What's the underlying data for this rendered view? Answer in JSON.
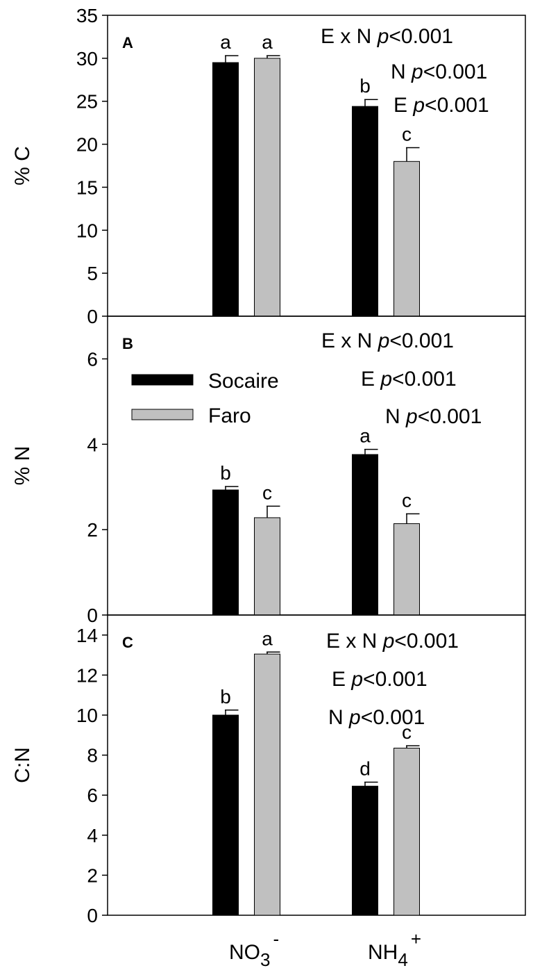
{
  "chart_data": [
    {
      "type": "bar",
      "panel_label": "A",
      "ylabel": "% C",
      "ylim": [
        0,
        35
      ],
      "yticks": [
        "0",
        "5",
        "10",
        "15",
        "20",
        "25",
        "30",
        "35"
      ],
      "ytick_values": [
        0,
        5,
        10,
        15,
        20,
        25,
        30,
        35
      ],
      "categories": [
        "NO3-",
        "NH4+"
      ],
      "series": [
        {
          "name": "Socaire",
          "color": "#000000",
          "values": [
            29.5,
            24.4
          ],
          "errors": [
            0.8,
            0.8
          ],
          "letters": [
            "a",
            "b"
          ]
        },
        {
          "name": "Faro",
          "color": "#c0c0c0",
          "values": [
            30.0,
            18.0
          ],
          "errors": [
            0.3,
            1.6
          ],
          "letters": [
            "a",
            "c"
          ]
        }
      ],
      "stats": [
        "E x N p<0.001",
        "N p<0.001",
        "E p<0.001"
      ]
    },
    {
      "type": "bar",
      "panel_label": "B",
      "ylabel": "% N",
      "ylim": [
        0,
        7
      ],
      "yticks": [
        "0",
        "2",
        "4",
        "6"
      ],
      "ytick_values": [
        0,
        2,
        4,
        6
      ],
      "categories": [
        "NO3-",
        "NH4+"
      ],
      "series": [
        {
          "name": "Socaire",
          "color": "#000000",
          "values": [
            2.93,
            3.76
          ],
          "errors": [
            0.08,
            0.12
          ],
          "letters": [
            "b",
            "a"
          ]
        },
        {
          "name": "Faro",
          "color": "#c0c0c0",
          "values": [
            2.28,
            2.14
          ],
          "errors": [
            0.27,
            0.23
          ],
          "letters": [
            "c",
            "c"
          ]
        }
      ],
      "stats": [
        "E x N p<0.001",
        "E p<0.001",
        "N p<0.001"
      ],
      "legend": [
        {
          "label": "Socaire",
          "color": "#000000"
        },
        {
          "label": "Faro",
          "color": "#c0c0c0"
        }
      ]
    },
    {
      "type": "bar",
      "panel_label": "C",
      "ylabel": "C:N",
      "ylim": [
        0,
        15
      ],
      "yticks": [
        "0",
        "2",
        "4",
        "6",
        "8",
        "10",
        "12",
        "14"
      ],
      "ytick_values": [
        0,
        2,
        4,
        6,
        8,
        10,
        12,
        14
      ],
      "categories": [
        "NO3-",
        "NH4+"
      ],
      "series": [
        {
          "name": "Socaire",
          "color": "#000000",
          "values": [
            10.0,
            6.45
          ],
          "errors": [
            0.25,
            0.2
          ],
          "letters": [
            "b",
            "d"
          ]
        },
        {
          "name": "Faro",
          "color": "#c0c0c0",
          "values": [
            13.05,
            8.35
          ],
          "errors": [
            0.1,
            0.12
          ],
          "letters": [
            "a",
            "c"
          ]
        }
      ],
      "stats": [
        "E x N p<0.001",
        "E p<0.001",
        "N p<0.001"
      ]
    }
  ],
  "x_categories": [
    {
      "base": "NO",
      "sub": "3",
      "sup": "-"
    },
    {
      "base": "NH",
      "sub": "4",
      "sup": "+"
    }
  ]
}
